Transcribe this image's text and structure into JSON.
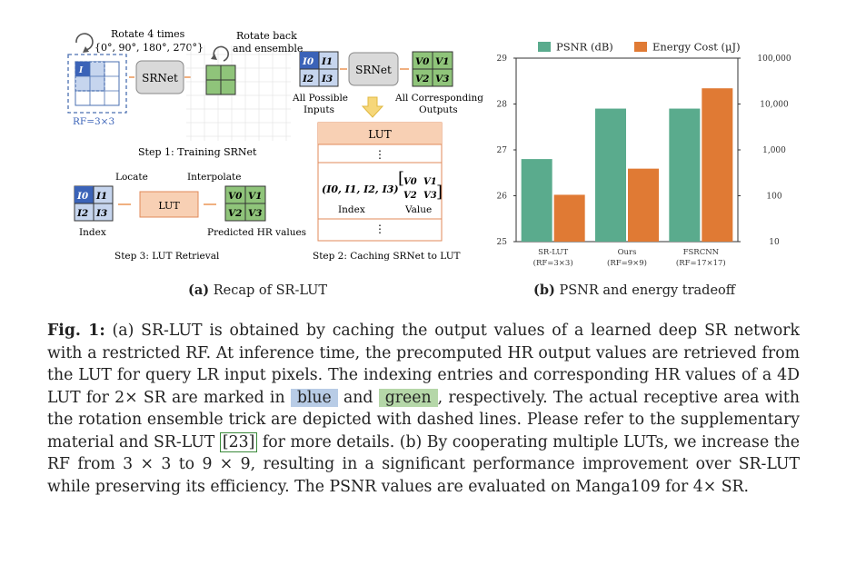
{
  "diagram": {
    "rotate4_title": "Rotate 4 times",
    "rotate4_angles": "{0°, 90°, 180°, 270°}",
    "rotate_back_1": "Rotate back",
    "rotate_back_2": "and ensemble",
    "i0": "I",
    "i0_sub": "0",
    "rf_label": "RF=3×3",
    "srnet_1": "SRNet",
    "srnet_2": "SRNet",
    "inputs_cells": [
      "I0",
      "I1",
      "I2",
      "I3"
    ],
    "outputs_cells": [
      "V0",
      "V1",
      "V2",
      "V3"
    ],
    "all_possible_1": "All Possible",
    "all_possible_2": "Inputs",
    "all_corr_1": "All Corresponding",
    "all_corr_2": "Outputs",
    "step1": "Step 1: Training SRNet",
    "lut_header": "LUT",
    "dots": "⋮",
    "index_tuple": "(I0, I1, I2, I3)",
    "value_matrix": [
      "V0",
      "V1",
      "V2",
      "V3"
    ],
    "index_word": "Index",
    "value_word": "Value",
    "step2": "Step 2: Caching SRNet to LUT",
    "locate": "Locate",
    "interpolate": "Interpolate",
    "lut_small": "LUT",
    "index_label": "Index",
    "predicted_hr": "Predicted HR values",
    "hat_cells": [
      "V0",
      "V1",
      "V2",
      "V3"
    ],
    "step3": "Step 3: LUT Retrieval"
  },
  "subcaption_a": {
    "tag": "(a)",
    "text": "Recap of SR-LUT"
  },
  "subcaption_b": {
    "tag": "(b)",
    "text": "PSNR and energy tradeoff"
  },
  "chart_data": {
    "type": "bar",
    "categories": [
      "SR-LUT",
      "Ours",
      "FSRCNN"
    ],
    "category_sublabels": [
      "(RF=3×3)",
      "(RF=9×9)",
      "(RF=17×17)"
    ],
    "series": [
      {
        "name": "PSNR (dB)",
        "axis": "left",
        "values": [
          26.8,
          27.9,
          27.9
        ],
        "color": "#5aab8d"
      },
      {
        "name": "Energy Cost (μJ)",
        "axis": "right",
        "values": [
          105,
          390,
          22000
        ],
        "color": "#e07a34"
      }
    ],
    "ylim_left": [
      25,
      29
    ],
    "yticks_left": [
      "25",
      "26",
      "27",
      "28",
      "29"
    ],
    "ylim_right": [
      10,
      100000
    ],
    "yscale_right": "log",
    "yticks_right": [
      "10",
      "100",
      "1,000",
      "10,000",
      "100,000"
    ],
    "legend_position": "top"
  },
  "caption": {
    "label": "Fig. 1:",
    "part1": " (a) SR-LUT is obtained by caching the output values of a learned deep SR network with a restricted RF. At inference time, the precomputed HR output values are retrieved from the LUT for query LR input pixels. The indexing entries and corresponding HR values of a 4D LUT for 2× SR are marked in ",
    "blue": "blue",
    "and": " and ",
    "green": "green",
    "part2": ", respectively. The actual receptive area with the rotation ensemble trick are depicted with dashed lines. Please refer to the supplementary material and SR-LUT ",
    "cite": "[23]",
    "part3": " for more details. (b) By cooperating multiple LUTs, we increase the RF from 3 × 3 to 9 × 9, resulting in a significant performance improvement over SR-LUT while preserving its efficiency. The PSNR values are evaluated on Manga109 for 4× SR."
  }
}
